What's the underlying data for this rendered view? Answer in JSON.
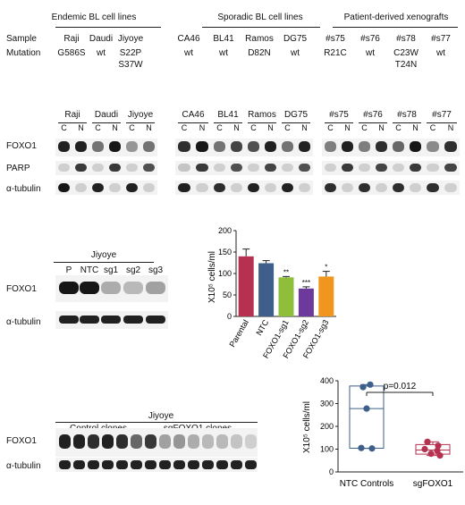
{
  "groups": [
    {
      "title": "Endemic BL cell lines"
    },
    {
      "title": "Sporadic BL cell lines"
    },
    {
      "title": "Patient-derived xenografts"
    }
  ],
  "row_labels": {
    "sample": "Sample",
    "mutation": "Mutation"
  },
  "samples": [
    {
      "name": "Raji",
      "mut1": "G586S",
      "mut2": ""
    },
    {
      "name": "Daudi",
      "mut1": "wt",
      "mut2": ""
    },
    {
      "name": "Jiyoye",
      "mut1": "S22P",
      "mut2": "S37W"
    },
    {
      "name": "CA46",
      "mut1": "wt",
      "mut2": ""
    },
    {
      "name": "BL41",
      "mut1": "wt",
      "mut2": ""
    },
    {
      "name": "Ramos",
      "mut1": "D82N",
      "mut2": ""
    },
    {
      "name": "DG75",
      "mut1": "wt",
      "mut2": ""
    },
    {
      "name": "#s75",
      "mut1": "R21C",
      "mut2": ""
    },
    {
      "name": "#s76",
      "mut1": "wt",
      "mut2": ""
    },
    {
      "name": "#s78",
      "mut1": "C23W",
      "mut2": "T24N"
    },
    {
      "name": "#s77",
      "mut1": "wt",
      "mut2": ""
    }
  ],
  "blot_a": {
    "lanes": [
      "C",
      "N"
    ],
    "proteins": [
      "FOXO1",
      "PARP",
      "α-tubulin"
    ]
  },
  "blot_b": {
    "title": "Jiyoye",
    "lanes": [
      "P",
      "NTC",
      "sg1",
      "sg2",
      "sg3"
    ],
    "proteins": [
      "FOXO1",
      "α-tubulin"
    ]
  },
  "blot_c": {
    "title": "Jiyoye",
    "groups": [
      "Control clones",
      "sgFOXO1 clones"
    ],
    "proteins": [
      "FOXO1",
      "α-tubulin"
    ]
  },
  "chart_data": [
    {
      "type": "bar",
      "categories": [
        "Parental",
        "NTC",
        "FOXO1-sg1",
        "FOXO1-sg2",
        "FOXO1-sg3"
      ],
      "values": [
        140,
        124,
        91,
        65,
        93
      ],
      "errors": [
        17,
        6,
        2,
        4,
        12
      ],
      "significance": [
        "",
        "",
        "**",
        "***",
        "*"
      ],
      "colors": [
        "#b5314f",
        "#3d5f8a",
        "#8fbf3a",
        "#6d3a9c",
        "#f0961e"
      ],
      "ylabel": "X10⁵ cells/ml",
      "ylim": [
        0,
        200
      ],
      "yticks": [
        0,
        50,
        100,
        150,
        200
      ]
    },
    {
      "type": "box",
      "categories": [
        "NTC Controls",
        "sgFOXO1"
      ],
      "series": [
        {
          "values": [
            383,
            372,
            278,
            105,
            103
          ],
          "stats": {
            "min": 103,
            "q1": 104,
            "median": 278,
            "q3": 377,
            "max": 383
          },
          "color": "#3d5f8a"
        },
        {
          "values": [
            132,
            115,
            100,
            93,
            80,
            72
          ],
          "stats": {
            "min": 72,
            "q1": 78,
            "median": 96,
            "q3": 120,
            "max": 132
          },
          "color": "#b5314f"
        }
      ],
      "annotation": "p=0.012",
      "ylabel": "X10⁵ cells/ml",
      "ylim": [
        0,
        400
      ],
      "yticks": [
        0,
        100,
        200,
        300,
        400
      ]
    }
  ]
}
